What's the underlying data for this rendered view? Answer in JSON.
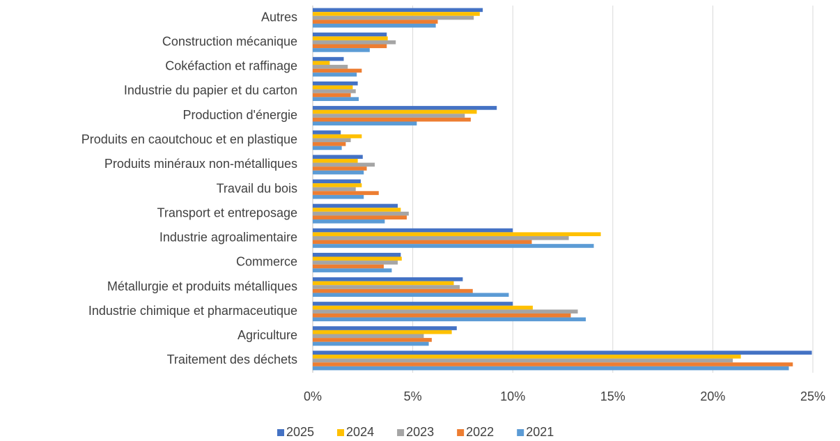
{
  "chart_data": {
    "type": "barh",
    "categories": [
      "Autres",
      "Construction mécanique",
      "Cokéfaction et raffinage",
      "Industrie du papier et du carton",
      "Production d'énergie",
      "Produits en caoutchouc et en plastique",
      "Produits minéraux non-métalliques",
      "Travail du bois",
      "Transport et entreposage",
      "Industrie agroalimentaire",
      "Commerce",
      "Métallurgie et produits métalliques",
      "Industrie chimique et pharmaceutique",
      "Agriculture",
      "Traitement des déchets"
    ],
    "series": [
      {
        "name": "2025",
        "color": "#4472c4",
        "values": [
          8.5,
          3.7,
          1.55,
          2.25,
          9.2,
          1.4,
          2.5,
          2.4,
          4.25,
          10.0,
          4.4,
          7.5,
          10.0,
          7.2,
          24.95
        ]
      },
      {
        "name": "2024",
        "color": "#ffc000",
        "values": [
          8.35,
          3.75,
          0.85,
          2.0,
          8.2,
          2.45,
          2.25,
          2.45,
          4.4,
          14.4,
          4.45,
          7.05,
          11.0,
          6.95,
          21.4
        ]
      },
      {
        "name": "2023",
        "color": "#a5a5a5",
        "values": [
          8.05,
          4.15,
          1.75,
          2.15,
          7.6,
          1.9,
          3.1,
          2.15,
          4.8,
          12.8,
          4.25,
          7.35,
          13.25,
          5.55,
          21.0
        ]
      },
      {
        "name": "2022",
        "color": "#ed7d31",
        "values": [
          6.25,
          3.7,
          2.45,
          1.9,
          7.9,
          1.65,
          2.7,
          3.3,
          4.7,
          10.95,
          3.55,
          8.0,
          12.9,
          5.95,
          24.0
        ]
      },
      {
        "name": "2021",
        "color": "#5b9bd5",
        "values": [
          6.15,
          2.85,
          2.2,
          2.3,
          5.2,
          1.45,
          2.55,
          2.55,
          3.6,
          14.05,
          3.95,
          9.8,
          13.65,
          5.8,
          23.8
        ]
      }
    ],
    "xlim": [
      0,
      25
    ],
    "xticks": [
      {
        "value": 0,
        "label": "0%"
      },
      {
        "value": 5,
        "label": "5%"
      },
      {
        "value": 10,
        "label": "10%"
      },
      {
        "value": 15,
        "label": "15%"
      },
      {
        "value": 20,
        "label": "20%"
      },
      {
        "value": 25,
        "label": "25%"
      }
    ],
    "grid": true,
    "legend": "bottom"
  }
}
